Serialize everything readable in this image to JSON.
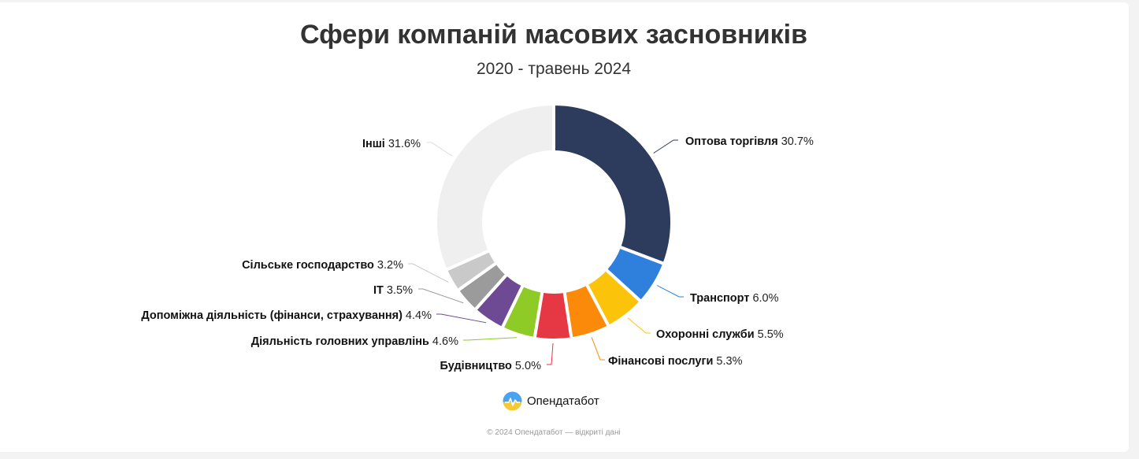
{
  "header": {
    "title": "Сфери компаній масових засновників",
    "subtitle": "2020 - травень 2024"
  },
  "brand": {
    "name": "Опендатабот",
    "logo_icon": "opendatabot-logo-icon"
  },
  "footer": {
    "text": "© 2024 Опендатабот — відкриті дані"
  },
  "chart_data": {
    "type": "pie",
    "variant": "donut",
    "title": "Сфери компаній масових засновників",
    "subtitle": "2020 - травень 2024",
    "unit": "%",
    "slices": [
      {
        "label": "Оптова торгівля",
        "value": 30.7,
        "value_label": "30.7%",
        "color": "#2d3b5c"
      },
      {
        "label": "Транспорт",
        "value": 6.0,
        "value_label": "6.0%",
        "color": "#2f80dd"
      },
      {
        "label": "Охоронні служби",
        "value": 5.5,
        "value_label": "5.5%",
        "color": "#fbc30a"
      },
      {
        "label": "Фінансові послуги",
        "value": 5.3,
        "value_label": "5.3%",
        "color": "#fb8a0b"
      },
      {
        "label": "Будівництво",
        "value": 5.0,
        "value_label": "5.0%",
        "color": "#e63744"
      },
      {
        "label": "Діяльність головних управлінь",
        "value": 4.6,
        "value_label": "4.6%",
        "color": "#8ecb26"
      },
      {
        "label": "Допоміжна діяльність (фінанси, страхування)",
        "value": 4.4,
        "value_label": "4.4%",
        "color": "#6d4a93"
      },
      {
        "label": "IT",
        "value": 3.5,
        "value_label": "3.5%",
        "color": "#9b9b9b"
      },
      {
        "label": "Сільське господарство",
        "value": 3.2,
        "value_label": "3.2%",
        "color": "#c9c9c9"
      },
      {
        "label": "Інші",
        "value": 31.6,
        "value_label": "31.6%",
        "color": "#efefef"
      }
    ]
  }
}
